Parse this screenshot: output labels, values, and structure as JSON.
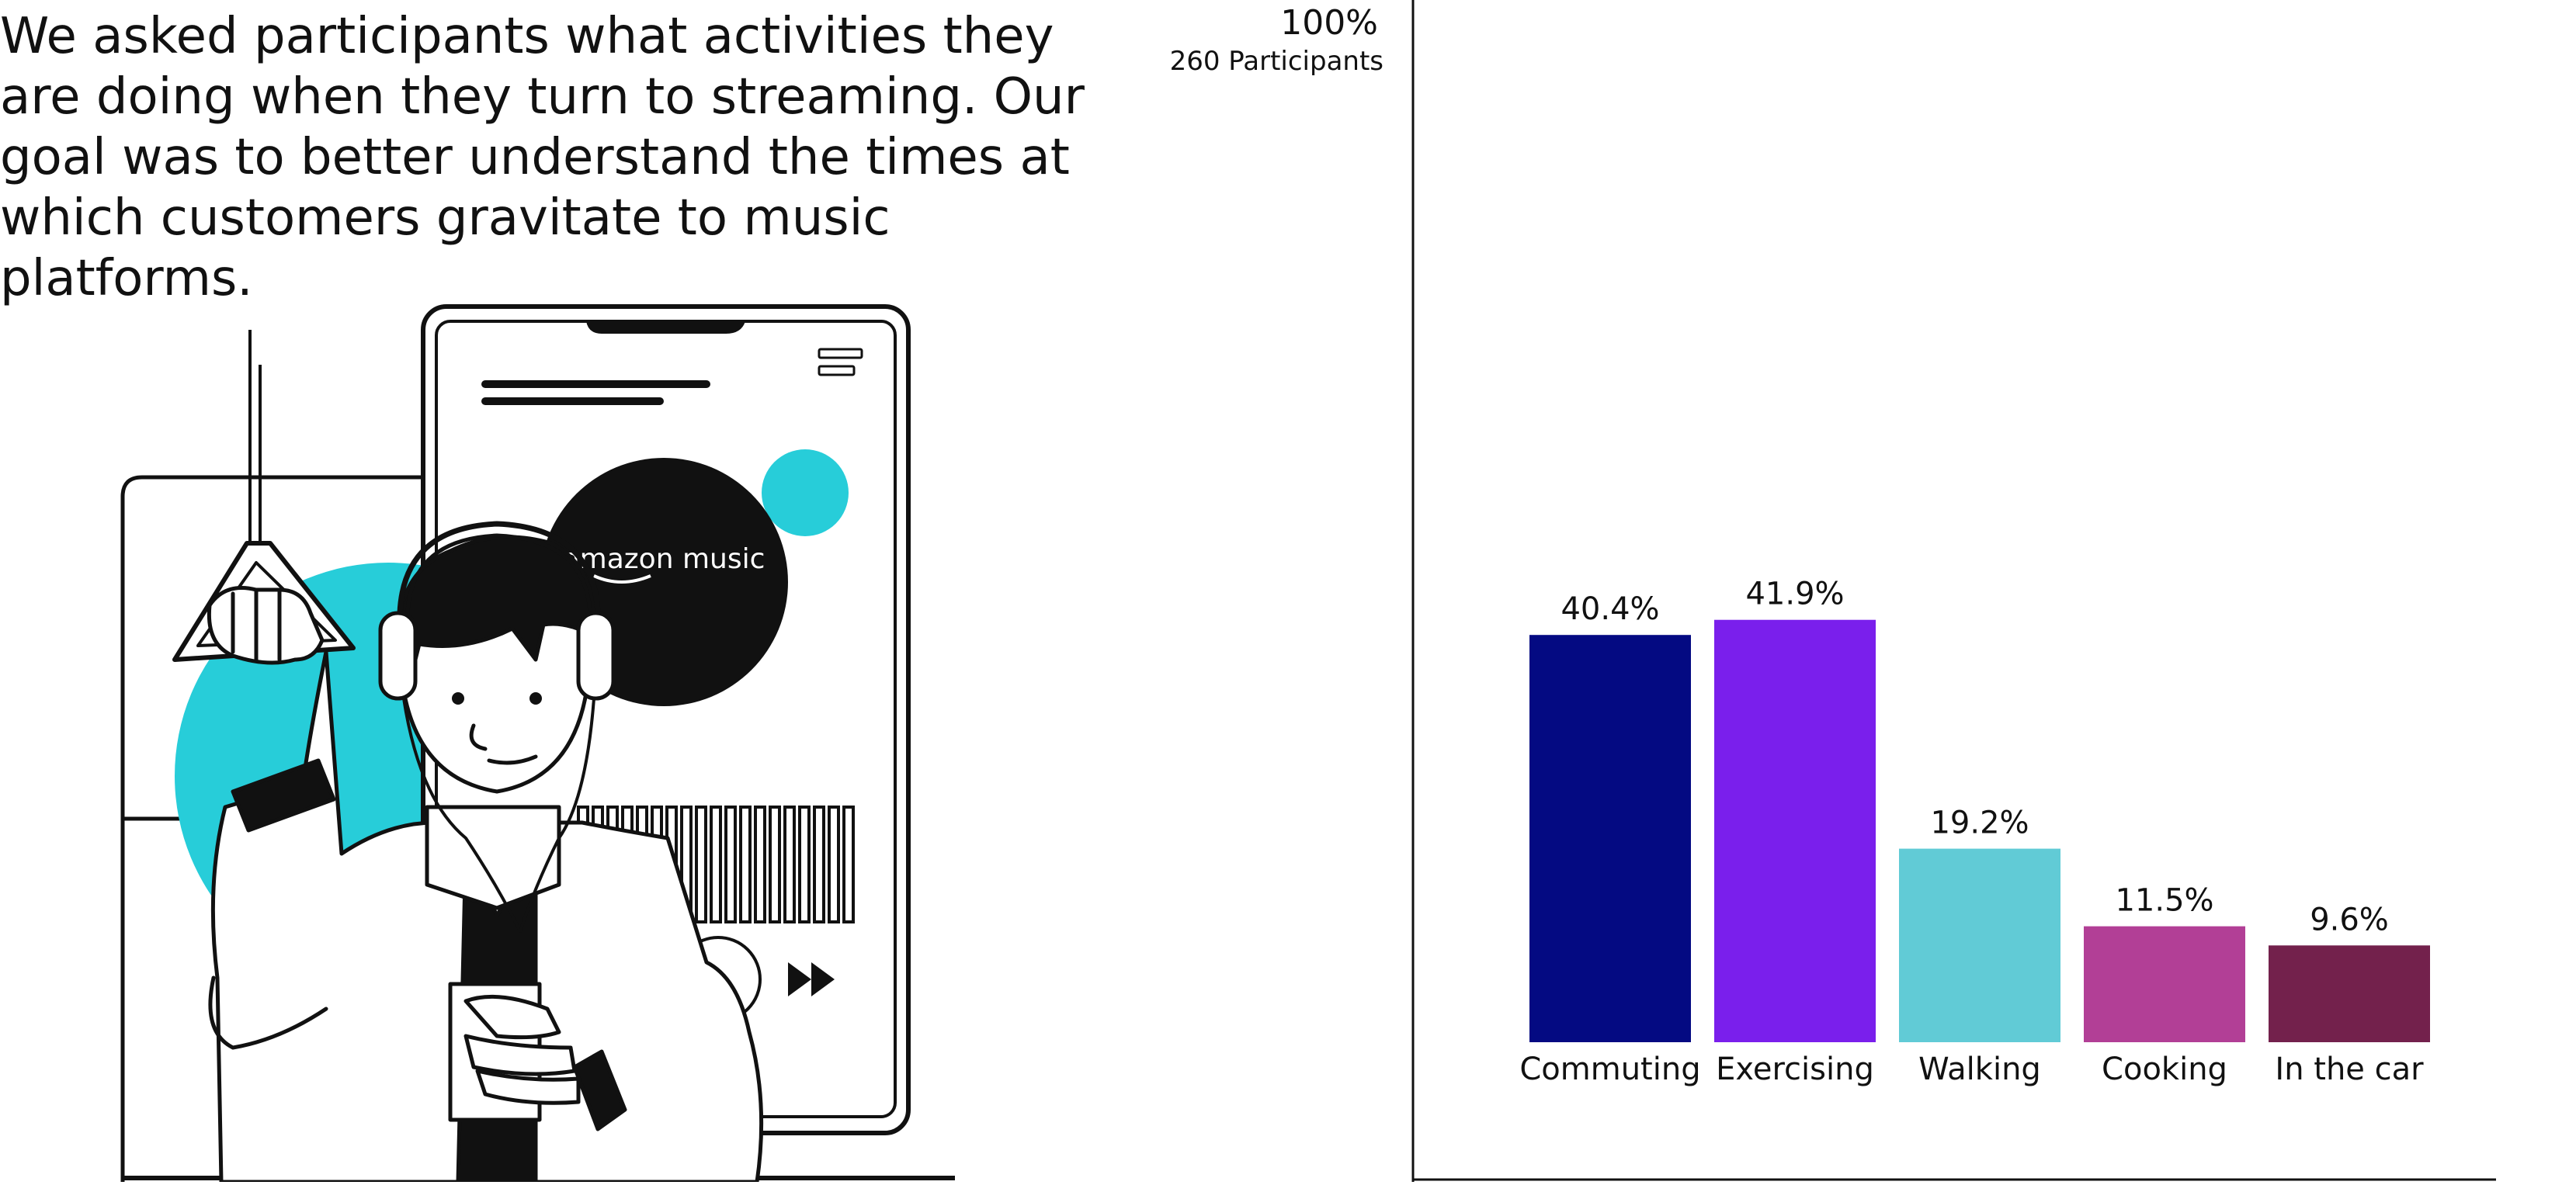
{
  "intro": {
    "text": "We asked participants what activities they are doing when they turn to streaming. Our goal was to better understand the times at which customers gravitate to music platforms."
  },
  "illustration": {
    "logo_text": "amazon music",
    "icons": [
      "person-with-headphones-icon",
      "phone-icon",
      "subway-handle-icon",
      "fast-forward-icon"
    ],
    "accent_color": "#27cdd9"
  },
  "chart_data": {
    "type": "bar",
    "top_value_label": "100%",
    "participants_label": "260 Participants",
    "categories": [
      "Commuting",
      "Exercising",
      "Walking",
      "Cooking",
      "In the car"
    ],
    "values": [
      40.4,
      41.9,
      19.2,
      11.5,
      9.6
    ],
    "value_labels": [
      "40.4%",
      "41.9%",
      "19.2%",
      "11.5%",
      "9.6%"
    ],
    "colors": [
      "#040a82",
      "#7a1fec",
      "#61cbd6",
      "#b23f96",
      "#73214c"
    ],
    "ylim": [
      0,
      100
    ],
    "grid": false
  }
}
